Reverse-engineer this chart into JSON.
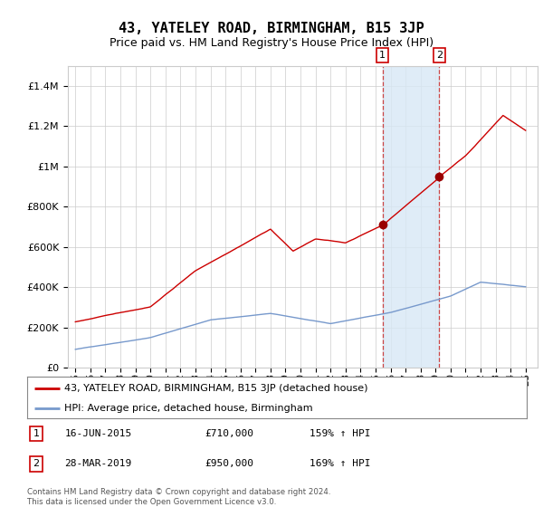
{
  "title": "43, YATELEY ROAD, BIRMINGHAM, B15 3JP",
  "subtitle": "Price paid vs. HM Land Registry's House Price Index (HPI)",
  "title_fontsize": 11,
  "subtitle_fontsize": 9,
  "background_color": "#ffffff",
  "plot_bg_color": "#ffffff",
  "grid_color": "#cccccc",
  "red_line_color": "#cc0000",
  "blue_line_color": "#7799cc",
  "sale1_date": 2015.46,
  "sale1_price": 710000,
  "sale2_date": 2019.24,
  "sale2_price": 950000,
  "shade_color": "#d8e8f5",
  "marker_color": "#990000",
  "ylim_min": 0,
  "ylim_max": 1500000,
  "legend_red_label": "43, YATELEY ROAD, BIRMINGHAM, B15 3JP (detached house)",
  "legend_blue_label": "HPI: Average price, detached house, Birmingham",
  "ann1_date": "16-JUN-2015",
  "ann1_price": "£710,000",
  "ann1_hpi": "159% ↑ HPI",
  "ann2_date": "28-MAR-2019",
  "ann2_price": "£950,000",
  "ann2_hpi": "169% ↑ HPI",
  "footer": "Contains HM Land Registry data © Crown copyright and database right 2024.\nThis data is licensed under the Open Government Licence v3.0."
}
